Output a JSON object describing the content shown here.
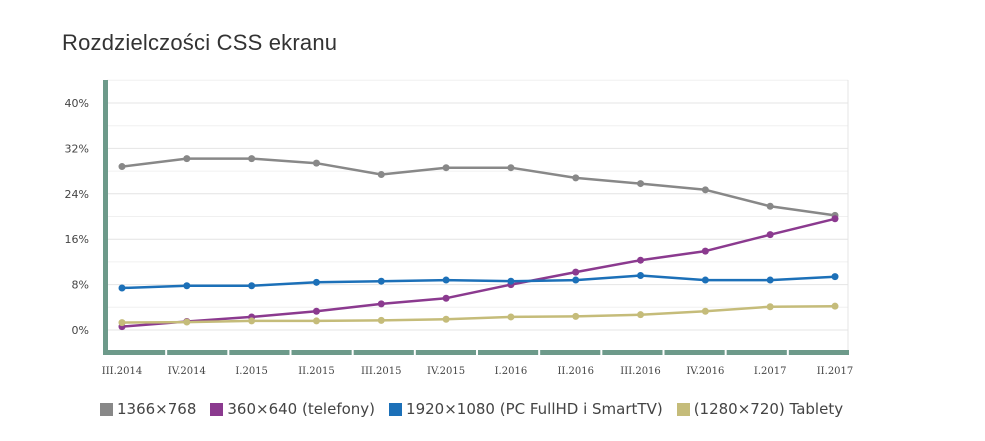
{
  "chart_data": {
    "type": "line",
    "title": "Rozdzielczości CSS ekranu",
    "xlabel": "",
    "ylabel": "",
    "categories": [
      "III.2014",
      "IV.2014",
      "I.2015",
      "II.2015",
      "III.2015",
      "IV.2015",
      "I.2016",
      "II.2016",
      "III.2016",
      "IV.2016",
      "I.2017",
      "II.2017"
    ],
    "yticks": [
      "0%",
      "8%",
      "16%",
      "24%",
      "32%",
      "40%"
    ],
    "ylim": [
      0,
      40
    ],
    "grid": true,
    "legend_position": "bottom",
    "series": [
      {
        "name": "1366×768",
        "color": "#888888",
        "values": [
          28.8,
          30.2,
          30.2,
          29.4,
          27.4,
          28.6,
          28.6,
          26.8,
          25.8,
          24.7,
          21.8,
          20.2
        ]
      },
      {
        "name": "360×640 (telefony)",
        "color": "#8b3a8f",
        "values": [
          0.6,
          1.5,
          2.3,
          3.3,
          4.6,
          5.6,
          8.0,
          10.2,
          12.3,
          13.9,
          16.8,
          19.6
        ]
      },
      {
        "name": "1920×1080 (PC FullHD i SmartTV)",
        "color": "#1c70b8",
        "values": [
          7.4,
          7.8,
          7.8,
          8.4,
          8.6,
          8.8,
          8.6,
          8.8,
          9.6,
          8.8,
          8.8,
          9.4
        ]
      },
      {
        "name": "(1280×720) Tablety",
        "color": "#c5bc7a",
        "values": [
          1.3,
          1.4,
          1.6,
          1.6,
          1.7,
          1.9,
          2.3,
          2.4,
          2.7,
          3.3,
          4.1,
          4.2
        ]
      }
    ]
  }
}
